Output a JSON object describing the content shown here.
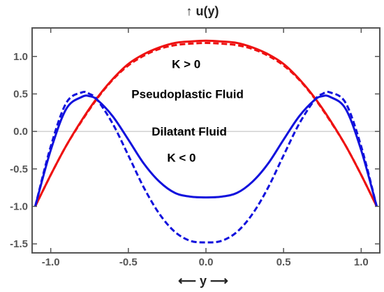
{
  "chart_data": {
    "type": "line",
    "title": "",
    "xlabel": "y",
    "ylabel": "u(y)",
    "xlim": [
      -1.12,
      1.12
    ],
    "ylim": [
      -1.62,
      1.38
    ],
    "grid": false,
    "x_ticks": [
      -1.0,
      -0.5,
      0.0,
      0.5,
      1.0
    ],
    "x_tick_labels": [
      "-1.0",
      "-0.5",
      "0.0",
      "0.5",
      "1.0"
    ],
    "y_ticks": [
      -1.5,
      -1.0,
      -0.5,
      0.0,
      0.5,
      1.0
    ],
    "y_tick_labels": [
      "-1.5",
      "-1.0",
      "-0.5",
      "0.0",
      "0.5",
      "1.0"
    ],
    "zero_line": true,
    "colors": {
      "red": "#ee1111",
      "blue": "#1111dd",
      "frame": "#555555",
      "zero": "#bbbbbb"
    },
    "series": [
      {
        "color": "#ee1111",
        "dash": "solid",
        "x": [
          -1.1,
          -1.0,
          -0.9,
          -0.8,
          -0.7,
          -0.6,
          -0.5,
          -0.4,
          -0.3,
          -0.2,
          -0.1,
          0.0,
          0.1,
          0.2,
          0.3,
          0.4,
          0.5,
          0.6,
          0.7,
          0.8,
          0.9,
          1.0,
          1.1
        ],
        "values": [
          -1.0,
          -0.58,
          -0.19,
          0.15,
          0.45,
          0.7,
          0.9,
          1.03,
          1.12,
          1.18,
          1.2,
          1.21,
          1.2,
          1.18,
          1.12,
          1.03,
          0.9,
          0.7,
          0.45,
          0.15,
          -0.19,
          -0.58,
          -1.0
        ]
      },
      {
        "color": "#ee1111",
        "dash": "dashed",
        "x": [
          -1.1,
          -1.0,
          -0.9,
          -0.8,
          -0.7,
          -0.6,
          -0.5,
          -0.4,
          -0.3,
          -0.2,
          -0.1,
          0.0,
          0.1,
          0.2,
          0.3,
          0.4,
          0.5,
          0.6,
          0.7,
          0.8,
          0.9,
          1.0,
          1.1
        ],
        "values": [
          -1.0,
          -0.58,
          -0.19,
          0.14,
          0.44,
          0.69,
          0.88,
          1.01,
          1.1,
          1.15,
          1.17,
          1.18,
          1.17,
          1.15,
          1.1,
          1.01,
          0.88,
          0.69,
          0.44,
          0.14,
          -0.19,
          -0.58,
          -1.0
        ]
      },
      {
        "color": "#1111dd",
        "dash": "solid",
        "x": [
          -1.1,
          -1.0,
          -0.9,
          -0.8,
          -0.75,
          -0.7,
          -0.6,
          -0.5,
          -0.4,
          -0.3,
          -0.2,
          -0.1,
          0.0,
          0.1,
          0.2,
          0.3,
          0.4,
          0.5,
          0.6,
          0.7,
          0.75,
          0.8,
          0.9,
          1.0,
          1.1
        ],
        "values": [
          -1.0,
          -0.25,
          0.3,
          0.46,
          0.47,
          0.42,
          0.2,
          -0.11,
          -0.43,
          -0.67,
          -0.82,
          -0.87,
          -0.88,
          -0.87,
          -0.82,
          -0.67,
          -0.43,
          -0.11,
          0.2,
          0.42,
          0.47,
          0.46,
          0.3,
          -0.25,
          -1.0
        ]
      },
      {
        "color": "#1111dd",
        "dash": "dashed",
        "x": [
          -1.1,
          -1.0,
          -0.9,
          -0.8,
          -0.75,
          -0.7,
          -0.6,
          -0.5,
          -0.4,
          -0.3,
          -0.2,
          -0.1,
          0.0,
          0.1,
          0.2,
          0.3,
          0.4,
          0.5,
          0.6,
          0.7,
          0.75,
          0.8,
          0.9,
          1.0,
          1.1
        ],
        "values": [
          -1.0,
          -0.2,
          0.38,
          0.52,
          0.5,
          0.42,
          0.1,
          -0.32,
          -0.75,
          -1.1,
          -1.34,
          -1.46,
          -1.48,
          -1.46,
          -1.34,
          -1.1,
          -0.75,
          -0.32,
          0.1,
          0.42,
          0.5,
          0.52,
          0.38,
          -0.2,
          -1.0
        ]
      }
    ],
    "annotations": [
      {
        "text": "K  > 0",
        "x": -0.22,
        "y": 0.9
      },
      {
        "text": "Pseudoplastic Fluid",
        "x": -0.48,
        "y": 0.5
      },
      {
        "text": "Dilatant Fluid",
        "x": -0.35,
        "y": 0.0
      },
      {
        "text": "K < 0",
        "x": -0.25,
        "y": -0.35
      }
    ]
  }
}
